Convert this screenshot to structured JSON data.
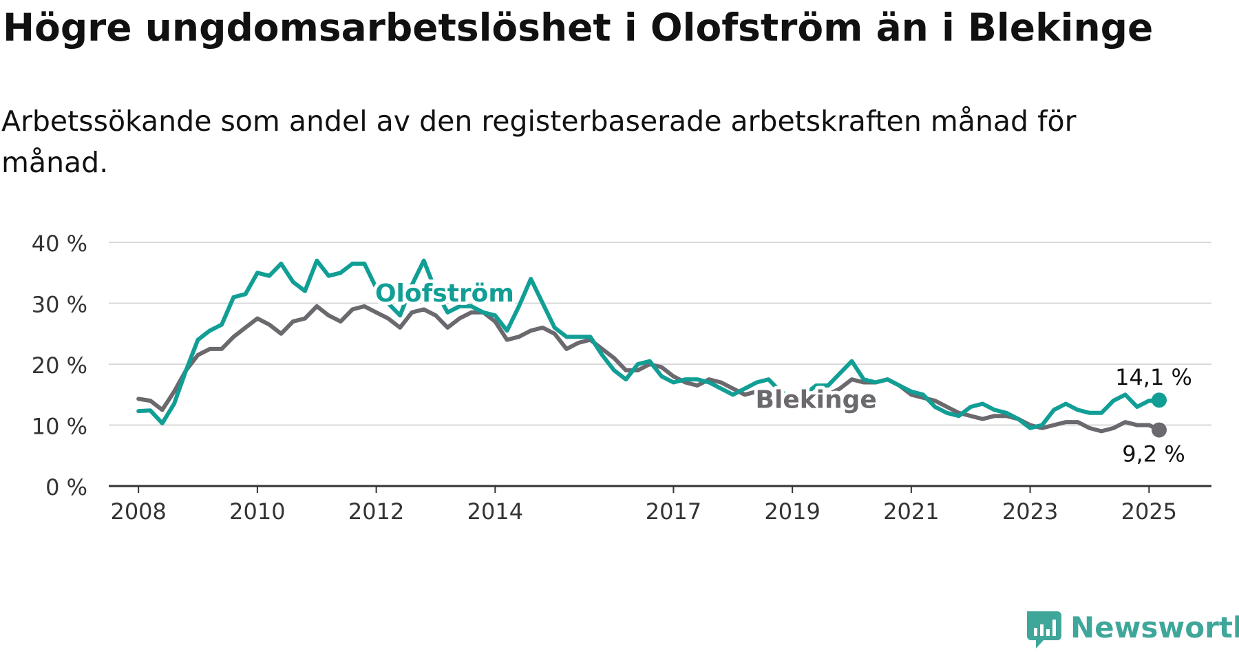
{
  "header": {
    "title": "Högre ungdomsarbetslöshet i Olofström än i Blekinge",
    "subtitle": "Arbetssökande som andel av den registerbaserade arbetskraften månad för månad."
  },
  "brand": {
    "name": "Newsworthy",
    "icon": "newsworthy-bar-chart-icon",
    "color": "#3fa69a"
  },
  "chart_data": {
    "type": "line",
    "title": "",
    "xlabel": "",
    "ylabel": "",
    "ylim": [
      0,
      40
    ],
    "xlim": [
      2007.5,
      2026.05
    ],
    "grid": true,
    "legend": "inline labels",
    "y_ticks": [
      {
        "value": 0,
        "label": "0 %"
      },
      {
        "value": 10,
        "label": "10 %"
      },
      {
        "value": 20,
        "label": "20 %"
      },
      {
        "value": 30,
        "label": "30 %"
      },
      {
        "value": 40,
        "label": "40 %"
      }
    ],
    "x_ticks": [
      {
        "value": 2008,
        "label": "2008"
      },
      {
        "value": 2010,
        "label": "2010"
      },
      {
        "value": 2012,
        "label": "2012"
      },
      {
        "value": 2014,
        "label": "2014"
      },
      {
        "value": 2017,
        "label": "2017"
      },
      {
        "value": 2019,
        "label": "2019"
      },
      {
        "value": 2021,
        "label": "2021"
      },
      {
        "value": 2023,
        "label": "2023"
      },
      {
        "value": 2025,
        "label": "2025"
      }
    ],
    "series": [
      {
        "name": "Olofström",
        "color": "#119e95",
        "inline_label": {
          "text": "Olofström",
          "x": 2013.15,
          "y": 30.3
        },
        "end_label": "14,1 %",
        "x": [
          2008.0,
          2008.2,
          2008.4,
          2008.6,
          2008.8,
          2009.0,
          2009.2,
          2009.4,
          2009.6,
          2009.8,
          2010.0,
          2010.2,
          2010.4,
          2010.6,
          2010.8,
          2011.0,
          2011.2,
          2011.4,
          2011.6,
          2011.8,
          2012.0,
          2012.2,
          2012.4,
          2012.6,
          2012.8,
          2013.0,
          2013.2,
          2013.4,
          2013.6,
          2013.8,
          2014.0,
          2014.2,
          2014.4,
          2014.6,
          2014.8,
          2015.0,
          2015.2,
          2015.4,
          2015.6,
          2015.8,
          2016.0,
          2016.2,
          2016.4,
          2016.6,
          2016.8,
          2017.0,
          2017.2,
          2017.4,
          2017.6,
          2017.8,
          2018.0,
          2018.2,
          2018.4,
          2018.6,
          2018.8,
          2019.0,
          2019.2,
          2019.4,
          2019.6,
          2019.8,
          2020.0,
          2020.2,
          2020.4,
          2020.6,
          2020.8,
          2021.0,
          2021.2,
          2021.4,
          2021.6,
          2021.8,
          2022.0,
          2022.2,
          2022.4,
          2022.6,
          2022.8,
          2023.0,
          2023.2,
          2023.4,
          2023.6,
          2023.8,
          2024.0,
          2024.2,
          2024.4,
          2024.6,
          2024.8,
          2025.0,
          2025.17
        ],
        "values": [
          12.3,
          12.4,
          10.3,
          13.5,
          19.0,
          24.0,
          25.5,
          26.5,
          31.0,
          31.5,
          35.0,
          34.5,
          36.5,
          33.5,
          32.0,
          37.0,
          34.5,
          35.0,
          36.5,
          36.5,
          32.5,
          30.0,
          28.0,
          33.0,
          37.0,
          32.0,
          28.5,
          29.5,
          29.5,
          28.5,
          28.0,
          25.5,
          29.5,
          34.0,
          30.0,
          26.0,
          24.5,
          24.5,
          24.5,
          21.5,
          19.0,
          17.5,
          20.0,
          20.5,
          18.0,
          17.0,
          17.5,
          17.5,
          17.0,
          16.0,
          15.0,
          16.0,
          17.0,
          17.5,
          15.5,
          14.5,
          15.0,
          16.5,
          16.5,
          18.5,
          20.5,
          17.5,
          17.0,
          17.5,
          16.5,
          15.5,
          15.0,
          13.0,
          12.0,
          11.5,
          13.0,
          13.5,
          12.5,
          12.0,
          11.0,
          9.5,
          10.0,
          12.5,
          13.5,
          12.5,
          12.0,
          12.0,
          14.0,
          15.0,
          13.0,
          14.0,
          14.1
        ]
      },
      {
        "name": "Blekinge",
        "color": "#6b686e",
        "inline_label": {
          "text": "Blekinge",
          "x": 2019.4,
          "y": 12.8
        },
        "end_label": "9,2 %",
        "x": [
          2008.0,
          2008.2,
          2008.4,
          2008.6,
          2008.8,
          2009.0,
          2009.2,
          2009.4,
          2009.6,
          2009.8,
          2010.0,
          2010.2,
          2010.4,
          2010.6,
          2010.8,
          2011.0,
          2011.2,
          2011.4,
          2011.6,
          2011.8,
          2012.0,
          2012.2,
          2012.4,
          2012.6,
          2012.8,
          2013.0,
          2013.2,
          2013.4,
          2013.6,
          2013.8,
          2014.0,
          2014.2,
          2014.4,
          2014.6,
          2014.8,
          2015.0,
          2015.2,
          2015.4,
          2015.6,
          2015.8,
          2016.0,
          2016.2,
          2016.4,
          2016.6,
          2016.8,
          2017.0,
          2017.2,
          2017.4,
          2017.6,
          2017.8,
          2018.0,
          2018.2,
          2018.4,
          2018.6,
          2018.8,
          2019.0,
          2019.2,
          2019.4,
          2019.6,
          2019.8,
          2020.0,
          2020.2,
          2020.4,
          2020.6,
          2020.8,
          2021.0,
          2021.2,
          2021.4,
          2021.6,
          2021.8,
          2022.0,
          2022.2,
          2022.4,
          2022.6,
          2022.8,
          2023.0,
          2023.2,
          2023.4,
          2023.6,
          2023.8,
          2024.0,
          2024.2,
          2024.4,
          2024.6,
          2024.8,
          2025.0,
          2025.17
        ],
        "values": [
          14.3,
          14.0,
          12.5,
          15.5,
          19.0,
          21.5,
          22.5,
          22.5,
          24.5,
          26.0,
          27.5,
          26.5,
          25.0,
          27.0,
          27.5,
          29.5,
          28.0,
          27.0,
          29.0,
          29.5,
          28.5,
          27.5,
          26.0,
          28.5,
          29.0,
          28.0,
          26.0,
          27.5,
          28.5,
          28.5,
          27.0,
          24.0,
          24.5,
          25.5,
          26.0,
          25.0,
          22.5,
          23.5,
          24.0,
          22.5,
          21.0,
          19.0,
          19.0,
          20.0,
          19.5,
          18.0,
          17.0,
          16.5,
          17.5,
          17.0,
          16.0,
          15.0,
          15.5,
          15.5,
          15.0,
          14.5,
          14.5,
          14.5,
          15.0,
          16.0,
          17.5,
          17.0,
          17.0,
          17.5,
          16.5,
          15.0,
          14.5,
          14.0,
          13.0,
          12.0,
          11.5,
          11.0,
          11.5,
          11.5,
          11.0,
          10.0,
          9.5,
          10.0,
          10.5,
          10.5,
          9.5,
          9.0,
          9.5,
          10.5,
          10.0,
          10.0,
          9.2
        ]
      }
    ]
  }
}
